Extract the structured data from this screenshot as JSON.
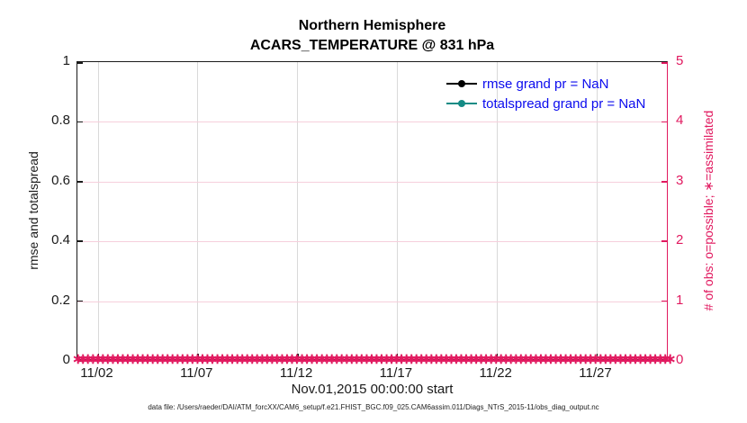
{
  "figure": {
    "title_line1": "Northern Hemisphere",
    "title_line2": "ACARS_TEMPERATURE @ 831 hPa",
    "caption": "data file: /Users/raeder/DAI/ATM_forcXX/CAM6_setup/f.e21.FHIST_BGC.f09_025.CAM6assim.011/Diags_NTrS_2015-11/obs_diag_output.nc"
  },
  "axes": {
    "left": {
      "label": "rmse and totalspread",
      "ticks": [
        "0",
        "0.2",
        "0.4",
        "0.6",
        "0.8",
        "1"
      ],
      "color": "#1a1a1a"
    },
    "right": {
      "label": "# of obs: o=possible; ∗=assimilated",
      "ticks": [
        "0",
        "1",
        "2",
        "3",
        "4",
        "5"
      ],
      "color": "#e1195f"
    },
    "x": {
      "label": "Nov.01,2015 00:00:00 start",
      "ticks": [
        "11/02",
        "11/07",
        "11/12",
        "11/17",
        "11/22",
        "11/27"
      ]
    }
  },
  "legend": {
    "text_color": "#0b0bee",
    "items": [
      {
        "label": "rmse grand pr = NaN",
        "color": "#000000",
        "marker": "filled-circle"
      },
      {
        "label": "totalspread grand pr = NaN",
        "color": "#148b85",
        "marker": "filled-circle"
      }
    ]
  },
  "colors": {
    "obs_accent": "#e1195f",
    "teal_series": "#148b85",
    "legend_text_blue": "#0b0bee",
    "grid_gray": "#d9d9d9",
    "grid_pink": "#f6cfdc"
  },
  "chart_data": {
    "type": "line",
    "title": "Northern Hemisphere",
    "subtitle": "ACARS_TEMPERATURE @ 831 hPa",
    "xlabel": "Nov.01,2015 00:00:00 start",
    "ylabel_left": "rmse and totalspread",
    "ylabel_right": "# of obs: o=possible; ∗=assimilated",
    "x_range": [
      "2015-11-01 00:00",
      "2015-12-01 00:00"
    ],
    "x_tick_labels": [
      "11/02",
      "11/07",
      "11/12",
      "11/17",
      "11/22",
      "11/27"
    ],
    "ylim_left": [
      0,
      1
    ],
    "y_ticks_left": [
      0,
      0.2,
      0.4,
      0.6,
      0.8,
      1
    ],
    "ylim_right": [
      0,
      5
    ],
    "y_ticks_right": [
      0,
      1,
      2,
      3,
      4,
      5
    ],
    "grid": true,
    "legend_position": "upper-right-inside-no-box",
    "n_time_bins": 120,
    "obs_marker_glyph": "∗",
    "series": [
      {
        "name": "rmse grand pr = NaN",
        "axis": "left",
        "color": "#000000",
        "marker": "circle",
        "values": "NaN for all time bins (no curve drawn)"
      },
      {
        "name": "totalspread grand pr = NaN",
        "axis": "left",
        "color": "#148b85",
        "marker": "circle",
        "values": "NaN for all time bins (no curve drawn)"
      },
      {
        "name": "# of obs assimilated",
        "axis": "right",
        "color": "#e1195f",
        "marker": "∗",
        "values_constant": 0,
        "note": "dense chain of ∗ markers at y=0 spanning the full date range"
      }
    ]
  }
}
